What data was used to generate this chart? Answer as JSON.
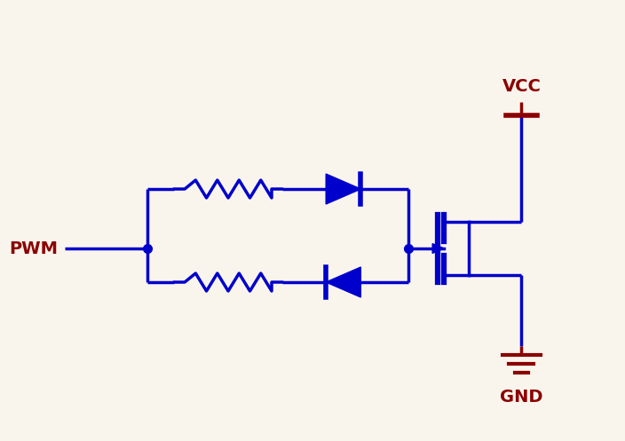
{
  "bg_color": "#faf5ec",
  "blue": "#0000cc",
  "dark_red": "#8b0000",
  "line_width": 2.5,
  "pwm_label": "PWM",
  "vcc_label": "VCC",
  "gnd_label": "GND"
}
